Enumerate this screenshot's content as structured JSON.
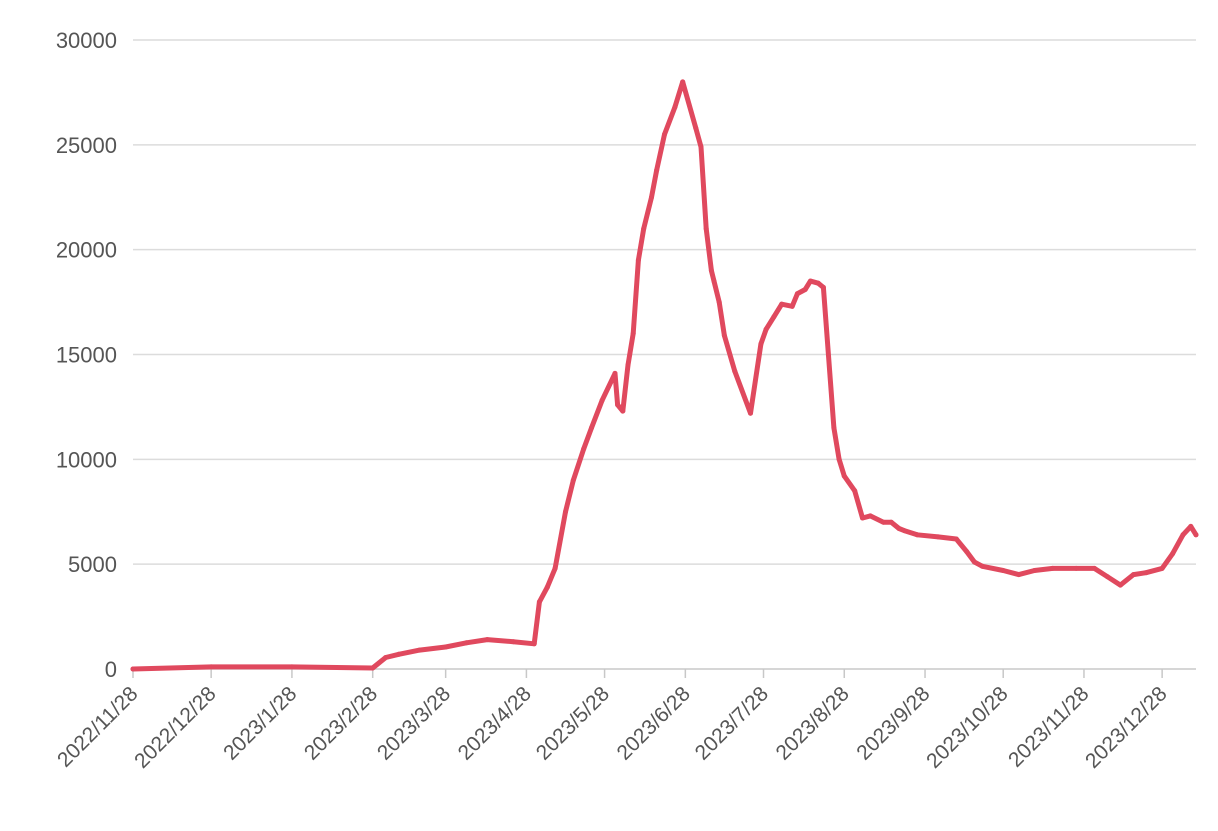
{
  "chart_data": {
    "type": "line",
    "title": "",
    "xlabel": "",
    "ylabel": "",
    "ylim": [
      0,
      30000
    ],
    "y_ticks": [
      0,
      5000,
      10000,
      15000,
      20000,
      25000,
      30000
    ],
    "x_tick_labels": [
      "2022/11/28",
      "2022/12/28",
      "2023/1/28",
      "2023/2/28",
      "2023/3/28",
      "2023/4/28",
      "2023/5/28",
      "2023/6/28",
      "2023/7/28",
      "2023/8/28",
      "2023/9/28",
      "2023/10/28",
      "2023/11/28",
      "2023/12/28"
    ],
    "x_range": [
      "2022/11/28",
      "2024/1/10"
    ],
    "grid": true,
    "legend": "none",
    "color": "#e0495e",
    "series": [
      {
        "x": [
          "2022/11/28",
          "2022/12/28",
          "2023/1/28",
          "2023/2/28",
          "2023/3/5",
          "2023/3/10",
          "2023/3/18",
          "2023/3/28",
          "2023/4/5",
          "2023/4/13",
          "2023/4/23",
          "2023/5/1",
          "2023/5/3",
          "2023/5/6",
          "2023/5/9",
          "2023/5/13",
          "2023/5/16",
          "2023/5/20",
          "2023/5/23",
          "2023/5/27",
          "2023/6/1",
          "2023/6/2",
          "2023/6/4",
          "2023/6/6",
          "2023/6/8",
          "2023/6/10",
          "2023/6/12",
          "2023/6/15",
          "2023/6/17",
          "2023/6/20",
          "2023/6/24",
          "2023/6/27",
          "2023/7/2",
          "2023/7/4",
          "2023/7/6",
          "2023/7/8",
          "2023/7/9",
          "2023/7/11",
          "2023/7/13",
          "2023/7/17",
          "2023/7/23",
          "2023/7/27",
          "2023/7/29",
          "2023/8/1",
          "2023/8/4",
          "2023/8/8",
          "2023/8/10",
          "2023/8/13",
          "2023/8/15",
          "2023/8/18",
          "2023/8/20",
          "2023/8/24",
          "2023/8/26",
          "2023/8/28",
          "2023/9/1",
          "2023/9/4",
          "2023/9/7",
          "2023/9/12",
          "2023/9/15",
          "2023/9/18",
          "2023/9/20",
          "2023/9/25",
          "2023/10/3",
          "2023/10/10",
          "2023/10/14",
          "2023/10/17",
          "2023/10/20",
          "2023/10/28",
          "2023/11/3",
          "2023/11/9",
          "2023/11/16",
          "2023/11/25",
          "2023/12/2",
          "2023/12/7",
          "2023/12/12",
          "2023/12/17",
          "2023/12/22",
          "2023/12/28",
          "2024/1/1",
          "2024/1/5",
          "2024/1/8",
          "2024/1/10"
        ],
        "y": [
          0,
          100,
          100,
          50,
          550,
          700,
          900,
          1050,
          1250,
          1400,
          1300,
          1200,
          3200,
          3900,
          4800,
          7500,
          9000,
          10500,
          11500,
          12800,
          14100,
          12600,
          12300,
          14500,
          16000,
          19500,
          21000,
          22500,
          23800,
          25500,
          26800,
          28000,
          25800,
          24900,
          21000,
          19000,
          18500,
          17500,
          15900,
          14200,
          12200,
          15500,
          16200,
          16800,
          17400,
          17300,
          17900,
          18100,
          18500,
          18400,
          18200,
          11500,
          10000,
          9200,
          8500,
          7200,
          7300,
          7000,
          7000,
          6700,
          6600,
          6400,
          6300,
          6200,
          5600,
          5100,
          4900,
          4700,
          4500,
          4700,
          4800,
          4800,
          4800,
          4400,
          4000,
          4500,
          4600,
          4800,
          5500,
          6400,
          6800,
          6400
        ]
      }
    ]
  }
}
